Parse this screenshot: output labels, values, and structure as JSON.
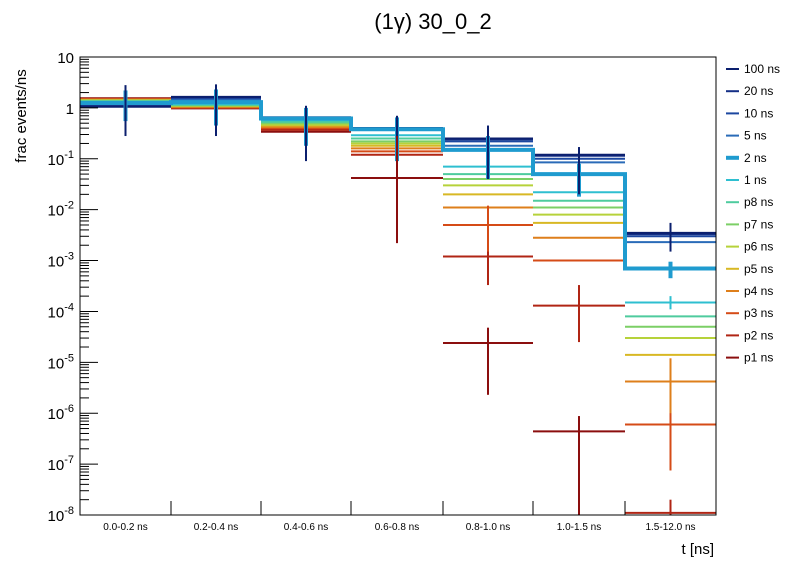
{
  "chart_data": {
    "type": "line",
    "title": "(1γ) 30_0_2",
    "xlabel": "t [ns]",
    "ylabel": "frac events/ns",
    "yscale": "log",
    "ylim": [
      1e-08,
      10
    ],
    "grid": false,
    "legend_position": "right",
    "categories": [
      "0.0-0.2 ns",
      "0.2-0.4 ns",
      "0.4-0.6 ns",
      "0.6-0.8 ns",
      "0.8-1.0 ns",
      "1.0-1.5 ns",
      "1.5-12.0 ns"
    ],
    "y_ticks": [
      {
        "base": "10",
        "exp": "-8",
        "value": 1e-08
      },
      {
        "base": "10",
        "exp": "-7",
        "value": 1e-07
      },
      {
        "base": "10",
        "exp": "-6",
        "value": 1e-06
      },
      {
        "base": "10",
        "exp": "-5",
        "value": 1e-05
      },
      {
        "base": "10",
        "exp": "-4",
        "value": 0.0001
      },
      {
        "base": "10",
        "exp": "-3",
        "value": 0.001
      },
      {
        "base": "10",
        "exp": "-2",
        "value": 0.01
      },
      {
        "base": "10",
        "exp": "-1",
        "value": 0.1
      },
      {
        "base": "1",
        "exp": "",
        "value": 1
      },
      {
        "base": "10",
        "exp": "",
        "value": 10
      }
    ],
    "series": [
      {
        "name": "100 ns",
        "color": "#0b1f6e",
        "highlight": false,
        "values": [
          1.05,
          1.65,
          0.65,
          0.4,
          0.25,
          0.12,
          0.0035
        ]
      },
      {
        "name": "20 ns",
        "color": "#142f86",
        "highlight": false,
        "values": [
          1.08,
          1.62,
          0.65,
          0.4,
          0.24,
          0.115,
          0.0033
        ]
      },
      {
        "name": "10 ns",
        "color": "#1c47a0",
        "highlight": false,
        "values": [
          1.1,
          1.55,
          0.64,
          0.39,
          0.22,
          0.1,
          0.003
        ]
      },
      {
        "name": "5 ns",
        "color": "#2a6bb8",
        "highlight": false,
        "values": [
          1.15,
          1.45,
          0.62,
          0.38,
          0.18,
          0.085,
          0.0023
        ]
      },
      {
        "name": "2 ns",
        "color": "#1f9bcf",
        "highlight": true,
        "values": [
          1.25,
          1.3,
          0.62,
          0.38,
          0.15,
          0.05,
          0.0007
        ]
      },
      {
        "name": "1 ns",
        "color": "#2ebfd0",
        "highlight": false,
        "values": [
          1.3,
          1.2,
          0.57,
          0.29,
          0.07,
          0.022,
          0.00015
        ]
      },
      {
        "name": "p8 ns",
        "color": "#4ecb9e",
        "highlight": false,
        "values": [
          1.35,
          1.15,
          0.53,
          0.25,
          0.05,
          0.015,
          8e-05
        ]
      },
      {
        "name": "p7 ns",
        "color": "#7ccf66",
        "highlight": false,
        "values": [
          1.38,
          1.12,
          0.5,
          0.22,
          0.04,
          0.011,
          5e-05
        ]
      },
      {
        "name": "p6 ns",
        "color": "#b6d23a",
        "highlight": false,
        "values": [
          1.4,
          1.1,
          0.47,
          0.2,
          0.03,
          0.008,
          3e-05
        ]
      },
      {
        "name": "p5 ns",
        "color": "#d8b824",
        "highlight": false,
        "values": [
          1.42,
          1.08,
          0.45,
          0.18,
          0.02,
          0.0055,
          1.4e-05
        ]
      },
      {
        "name": "p4 ns",
        "color": "#de7f1b",
        "highlight": false,
        "values": [
          1.45,
          1.05,
          0.42,
          0.16,
          0.011,
          0.0028,
          4.2e-06
        ]
      },
      {
        "name": "p3 ns",
        "color": "#d54b17",
        "highlight": false,
        "values": [
          1.48,
          1.02,
          0.4,
          0.14,
          0.005,
          0.001,
          6e-07
        ]
      },
      {
        "name": "p2 ns",
        "color": "#b02514",
        "highlight": false,
        "values": [
          1.5,
          1.0,
          0.37,
          0.12,
          0.0012,
          0.00013,
          1.1e-08
        ]
      },
      {
        "name": "p1 ns",
        "color": "#8b0e0e",
        "highlight": false,
        "values": [
          1.55,
          0.98,
          0.34,
          0.042,
          2.4e-05,
          4.4e-07,
          1e-09
        ]
      }
    ],
    "error_bars": [
      {
        "series": "2 ns",
        "bin": 0,
        "low": 0.55,
        "high": 2.2
      },
      {
        "series": "2 ns",
        "bin": 1,
        "low": 0.45,
        "high": 2.3
      },
      {
        "series": "2 ns",
        "bin": 2,
        "low": 0.18,
        "high": 1.0
      },
      {
        "series": "2 ns",
        "bin": 3,
        "low": 0.09,
        "high": 0.65
      },
      {
        "series": "2 ns",
        "bin": 4,
        "low": 0.04,
        "high": 0.28
      },
      {
        "series": "2 ns",
        "bin": 5,
        "low": 0.018,
        "high": 0.08
      },
      {
        "series": "2 ns",
        "bin": 6,
        "low": 0.00045,
        "high": 0.00095
      },
      {
        "series": "1 ns",
        "bin": 6,
        "low": 0.00011,
        "high": 0.0002
      },
      {
        "series": "100 ns",
        "bin": 0,
        "low": 0.28,
        "high": 2.8
      },
      {
        "series": "100 ns",
        "bin": 1,
        "low": 0.28,
        "high": 2.9
      },
      {
        "series": "100 ns",
        "bin": 2,
        "low": 0.09,
        "high": 1.1
      },
      {
        "series": "100 ns",
        "bin": 3,
        "low": 0.05,
        "high": 0.7
      },
      {
        "series": "100 ns",
        "bin": 4,
        "low": 0.04,
        "high": 0.45
      },
      {
        "series": "100 ns",
        "bin": 5,
        "low": 0.02,
        "high": 0.17
      },
      {
        "series": "100 ns",
        "bin": 6,
        "low": 0.0015,
        "high": 0.0055
      },
      {
        "series": "p1 ns",
        "bin": 3,
        "low": 0.0022,
        "high": 0.28
      },
      {
        "series": "p1 ns",
        "bin": 4,
        "low": 2.3e-06,
        "high": 4.8e-05
      },
      {
        "series": "p1 ns",
        "bin": 5,
        "low": 1e-08,
        "high": 8.8e-07
      },
      {
        "series": "p2 ns",
        "bin": 4,
        "low": 0.00033,
        "high": 0.004
      },
      {
        "series": "p2 ns",
        "bin": 5,
        "low": 2.5e-05,
        "high": 0.00033
      },
      {
        "series": "p2 ns",
        "bin": 6,
        "low": 1e-08,
        "high": 2e-08
      },
      {
        "series": "p3 ns",
        "bin": 4,
        "low": 0.0015,
        "high": 0.012
      },
      {
        "series": "p3 ns",
        "bin": 6,
        "low": 7.5e-08,
        "high": 2e-06
      },
      {
        "series": "p4 ns",
        "bin": 6,
        "low": 1e-06,
        "high": 1.2e-05
      }
    ]
  }
}
